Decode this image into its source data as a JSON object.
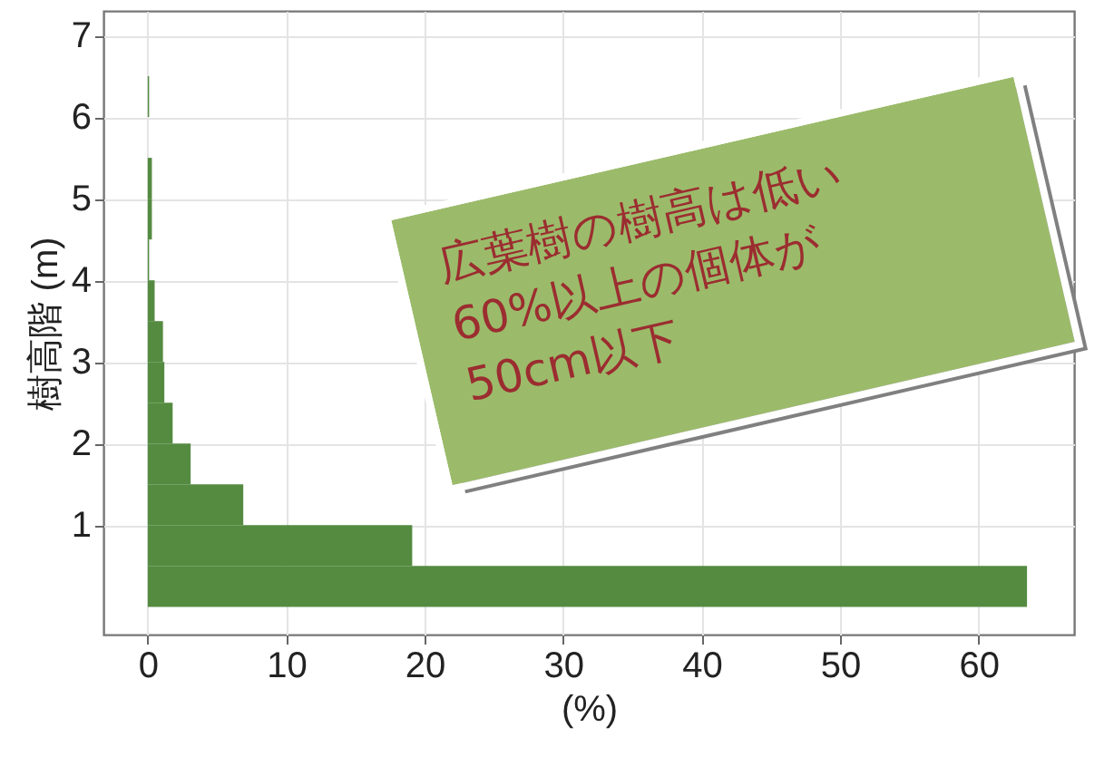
{
  "chart_data": {
    "type": "histogram",
    "orientation": "horizontal",
    "ylabel": "樹高階 (m)",
    "xlabel": "(%)",
    "bins": [
      0,
      0.5,
      1,
      1.5,
      2,
      2.5,
      3,
      3.5,
      4,
      4.5,
      5,
      5.5,
      6,
      6.5,
      7
    ],
    "values": [
      63.5,
      19.1,
      6.9,
      3.1,
      1.8,
      1.2,
      1.1,
      0.5,
      0.1,
      0.3,
      0.3,
      0,
      0.1,
      0
    ],
    "color": "#548b41",
    "xlim": [
      -3.2,
      66.9
    ],
    "xticks": [
      0,
      10,
      20,
      30,
      40,
      50,
      60
    ],
    "ylim": [
      -0.34,
      7.3
    ],
    "yticks": [
      1,
      2,
      3,
      4,
      5,
      6,
      7
    ],
    "grid": true,
    "annotations": [
      "広葉樹の樹高は低い\n60%以上の個体が\n50cm以下"
    ]
  }
}
